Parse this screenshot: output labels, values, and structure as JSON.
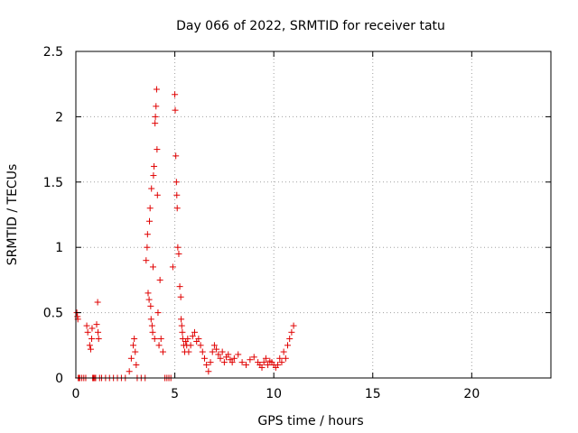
{
  "chart_data": {
    "type": "scatter",
    "title": "Day 066 of 2022, SRMTID for receiver tatu",
    "xlabel": "GPS time / hours",
    "ylabel": "SRMTID / TECUs",
    "xlim": [
      0,
      24
    ],
    "ylim": [
      0,
      2.5
    ],
    "xticks": [
      0,
      5,
      10,
      15,
      20
    ],
    "yticks": [
      0,
      0.5,
      1,
      1.5,
      2,
      2.5
    ],
    "xtick_labels": [
      "0",
      "5",
      "10",
      "15",
      "20"
    ],
    "ytick_labels": [
      "0",
      "0.5",
      "1",
      "1.5",
      "2",
      "2.5"
    ],
    "grid": true,
    "marker": "+",
    "series": [
      {
        "name": "SRMTID",
        "color": "#e00000",
        "x": [
          0.05,
          0.08,
          0.1,
          0.12,
          0.15,
          0.2,
          0.3,
          0.4,
          0.5,
          0.55,
          0.6,
          0.7,
          0.75,
          0.8,
          0.82,
          0.85,
          0.88,
          0.9,
          0.95,
          1.0,
          1.05,
          1.1,
          1.12,
          1.15,
          1.2,
          1.3,
          1.5,
          1.7,
          1.9,
          2.1,
          2.3,
          2.5,
          2.7,
          2.8,
          2.9,
          2.95,
          3.0,
          3.05,
          3.1,
          3.3,
          3.5,
          3.55,
          3.6,
          3.62,
          3.65,
          3.7,
          3.72,
          3.75,
          3.78,
          3.8,
          3.82,
          3.85,
          3.88,
          3.9,
          3.92,
          3.95,
          3.98,
          4.0,
          4.02,
          4.05,
          4.08,
          4.1,
          4.12,
          4.15,
          4.2,
          4.25,
          4.3,
          4.4,
          4.5,
          4.6,
          4.7,
          4.8,
          4.9,
          5.0,
          5.02,
          5.05,
          5.08,
          5.1,
          5.12,
          5.15,
          5.2,
          5.25,
          5.3,
          5.32,
          5.35,
          5.38,
          5.4,
          5.45,
          5.5,
          5.55,
          5.6,
          5.65,
          5.7,
          5.8,
          5.9,
          6.0,
          6.1,
          6.2,
          6.3,
          6.4,
          6.5,
          6.6,
          6.7,
          6.8,
          6.9,
          7.0,
          7.1,
          7.2,
          7.3,
          7.4,
          7.5,
          7.6,
          7.7,
          7.8,
          7.9,
          8.0,
          8.2,
          8.4,
          8.6,
          8.8,
          9.0,
          9.2,
          9.3,
          9.4,
          9.5,
          9.6,
          9.7,
          9.8,
          9.9,
          10.0,
          10.1,
          10.2,
          10.3,
          10.4,
          10.5,
          10.6,
          10.7,
          10.8,
          10.9,
          11.0
        ],
        "y": [
          0.5,
          0.47,
          0.45,
          0.0,
          0.0,
          0.0,
          0.0,
          0.0,
          0.0,
          0.4,
          0.35,
          0.25,
          0.22,
          0.3,
          0.38,
          0.0,
          0.0,
          0.0,
          0.0,
          0.0,
          0.41,
          0.58,
          0.35,
          0.3,
          0.0,
          0.0,
          0.0,
          0.0,
          0.0,
          0.0,
          0.0,
          0.0,
          0.05,
          0.15,
          0.25,
          0.3,
          0.2,
          0.1,
          0.0,
          0.0,
          0.0,
          0.9,
          1.0,
          1.1,
          0.65,
          0.6,
          1.2,
          1.3,
          0.55,
          0.45,
          1.45,
          0.4,
          0.35,
          0.85,
          1.55,
          1.62,
          0.3,
          1.95,
          2.0,
          2.08,
          2.21,
          1.75,
          1.4,
          0.5,
          0.25,
          0.75,
          0.3,
          0.2,
          0.0,
          0.0,
          0.0,
          0.0,
          0.85,
          2.17,
          2.05,
          1.7,
          1.5,
          1.4,
          1.3,
          1.0,
          0.95,
          0.7,
          0.62,
          0.45,
          0.4,
          0.35,
          0.3,
          0.25,
          0.2,
          0.28,
          0.25,
          0.3,
          0.2,
          0.25,
          0.32,
          0.35,
          0.28,
          0.3,
          0.25,
          0.2,
          0.15,
          0.1,
          0.05,
          0.12,
          0.2,
          0.25,
          0.22,
          0.18,
          0.15,
          0.2,
          0.12,
          0.16,
          0.18,
          0.14,
          0.12,
          0.15,
          0.18,
          0.12,
          0.1,
          0.14,
          0.16,
          0.12,
          0.1,
          0.08,
          0.12,
          0.15,
          0.1,
          0.13,
          0.12,
          0.1,
          0.08,
          0.1,
          0.15,
          0.12,
          0.2,
          0.15,
          0.25,
          0.3,
          0.35,
          0.4
        ]
      }
    ]
  }
}
